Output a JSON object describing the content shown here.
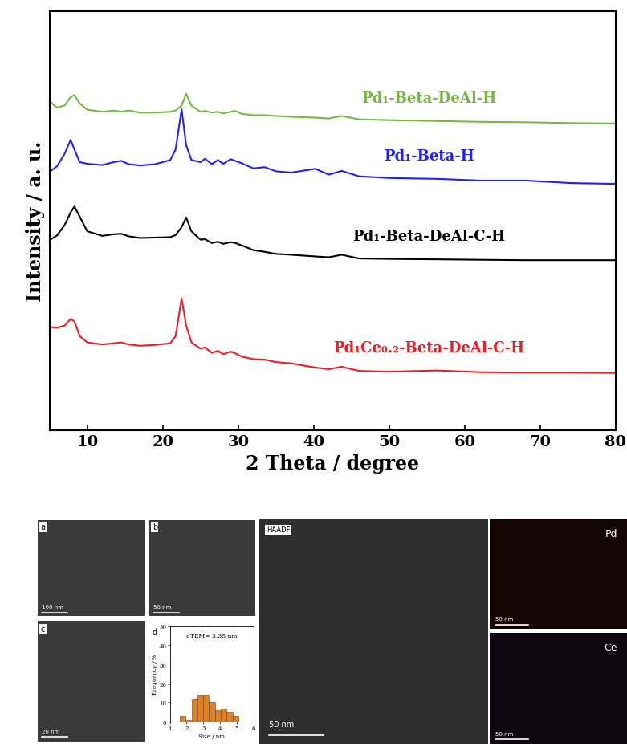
{
  "chart_data": [
    {
      "type": "line",
      "x_label": "2 Theta / degree",
      "y_label": "Intensity / a. u.",
      "xlim": [
        5,
        80
      ],
      "xticks": [
        10,
        20,
        30,
        40,
        50,
        60,
        70,
        80
      ],
      "ylim": [
        0,
        100
      ],
      "tick_labels": "x",
      "x": [
        5,
        6,
        7,
        7.8,
        8.3,
        9,
        10,
        12,
        13.5,
        14.5,
        15.5,
        17,
        19,
        21,
        21.7,
        22.5,
        23.1,
        23.8,
        25,
        25.6,
        26.5,
        27.3,
        28,
        29,
        29.6,
        30.5,
        32,
        33.5,
        35,
        37,
        40.2,
        42,
        43.7,
        46,
        50,
        56.3,
        62,
        68,
        74,
        80
      ],
      "series": [
        {
          "name": "Pd₁-Beta-DeAl-H",
          "color": "#77b843",
          "values": [
            78.5,
            77,
            77.5,
            79.5,
            80,
            78,
            76.5,
            76,
            76.3,
            76,
            76.3,
            75.8,
            75.8,
            76,
            76.3,
            77.5,
            80.3,
            77.5,
            76,
            76.2,
            75.8,
            76,
            75.6,
            76,
            76.2,
            75.5,
            75.2,
            75.2,
            75,
            74.8,
            74.6,
            74.4,
            75,
            74.2,
            74,
            73.8,
            73.6,
            73.5,
            73.3,
            73.2
          ]
        },
        {
          "name": "Pd₁-Beta-H",
          "color": "#1f1fff",
          "values": [
            61.7,
            63,
            66,
            69.3,
            67,
            64,
            63.6,
            63.3,
            64,
            64.3,
            63.5,
            63.2,
            63.5,
            64.5,
            67,
            76.6,
            68,
            64.5,
            64,
            64.8,
            63.5,
            64.5,
            63.6,
            64.7,
            64.3,
            63.7,
            62.5,
            62.8,
            61.8,
            61.5,
            62.4,
            61,
            61.9,
            60.6,
            60.2,
            60,
            59.6,
            59.6,
            59,
            58.8
          ]
        },
        {
          "name": "Pd₁-Beta-DeAl-C-H",
          "color": "#000000",
          "values": [
            45.4,
            46.5,
            49,
            52,
            53.4,
            51,
            47.5,
            46.4,
            46.8,
            46.9,
            46.3,
            45.9,
            46,
            46.1,
            46.6,
            48.5,
            50.8,
            47.5,
            45.5,
            45.6,
            44.7,
            45,
            44.5,
            44.9,
            44.7,
            44.1,
            43,
            42.6,
            42.1,
            41.9,
            41.5,
            41.3,
            41.9,
            41,
            40.9,
            40.8,
            40.7,
            40.6,
            40.6,
            40.6
          ]
        },
        {
          "name": "Pd₁Ce₀.₂-Beta-DeAl-C-H",
          "color": "#ee1c25",
          "values": [
            24.7,
            24.5,
            25,
            26.6,
            26,
            22.5,
            21,
            20.5,
            20.8,
            21,
            20.5,
            20.2,
            20.4,
            20.8,
            22.5,
            31.5,
            25,
            21,
            19.5,
            19.8,
            18.5,
            19,
            18.2,
            18.8,
            18.4,
            17.6,
            17,
            16.9,
            16.3,
            16,
            15,
            14.6,
            15.2,
            14.2,
            14,
            14.3,
            13.9,
            13.8,
            13.8,
            13.7
          ]
        }
      ]
    },
    {
      "type": "histogram",
      "label": "d",
      "annotation": "dTEM= 3.35 nm",
      "x_label": "Size / nm",
      "y_label": "Frequency / %",
      "bins": [
        1.6,
        1.95,
        2.3,
        2.65,
        3.0,
        3.35,
        3.7,
        4.05,
        4.4,
        4.75,
        5.1
      ],
      "counts": [
        3,
        1,
        12,
        14,
        14,
        10,
        6,
        7,
        5,
        3
      ],
      "color": "#d9822b",
      "xlim": [
        1,
        6
      ],
      "xticks": [
        1,
        2,
        3,
        4,
        5,
        6
      ],
      "ylim": [
        0,
        50
      ],
      "yticks": [
        0,
        10,
        20,
        30,
        40,
        50
      ]
    }
  ],
  "images": [
    {
      "label": "a",
      "scale_bar": "100 nm"
    },
    {
      "label": "b",
      "scale_bar": "50 nm"
    },
    {
      "label": "c",
      "scale_bar": "20 nm"
    },
    {
      "label": "HAADF",
      "scale_bar": "50 nm"
    },
    {
      "label": "Pd",
      "scale_bar": "50 nm"
    },
    {
      "label": "Ce",
      "scale_bar": "50 nm"
    }
  ]
}
